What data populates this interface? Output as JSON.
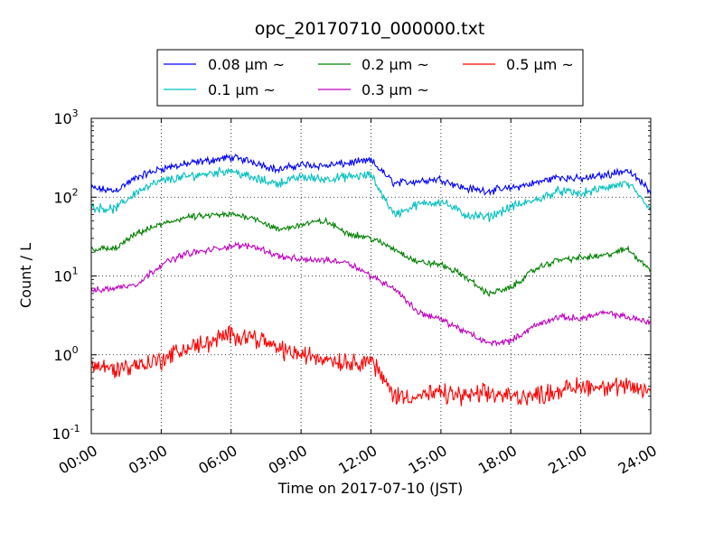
{
  "chart_data": {
    "type": "line",
    "title": "opc_20170710_000000.txt",
    "xlabel": "Time on 2017-07-10 (JST)",
    "ylabel": "Count / L",
    "yscale": "log",
    "ylim": [
      0.1,
      1000
    ],
    "y_ticks": [
      {
        "value": 0.1,
        "base": "10",
        "exp": "-1"
      },
      {
        "value": 1,
        "base": "10",
        "exp": "0"
      },
      {
        "value": 10,
        "base": "10",
        "exp": "1"
      },
      {
        "value": 100,
        "base": "10",
        "exp": "2"
      },
      {
        "value": 1000,
        "base": "10",
        "exp": "3"
      }
    ],
    "x_range_hours": [
      0,
      24
    ],
    "x_ticks": [
      {
        "hour": 0,
        "label": "00:00"
      },
      {
        "hour": 3,
        "label": "03:00"
      },
      {
        "hour": 6,
        "label": "06:00"
      },
      {
        "hour": 9,
        "label": "09:00"
      },
      {
        "hour": 12,
        "label": "12:00"
      },
      {
        "hour": 15,
        "label": "15:00"
      },
      {
        "hour": 18,
        "label": "18:00"
      },
      {
        "hour": 21,
        "label": "21:00"
      },
      {
        "hour": 24,
        "label": "24:00"
      }
    ],
    "grid": true,
    "legend_position": "top-center",
    "x": [
      "00:00",
      "01:00",
      "02:00",
      "03:00",
      "04:00",
      "05:00",
      "06:00",
      "07:00",
      "08:00",
      "09:00",
      "10:00",
      "11:00",
      "12:00",
      "13:00",
      "14:00",
      "15:00",
      "16:00",
      "17:00",
      "18:00",
      "19:00",
      "20:00",
      "21:00",
      "22:00",
      "23:00",
      "24:00"
    ],
    "series": [
      {
        "name": "0.08 μm ~",
        "color": "#0000ff",
        "noise": 0.06,
        "values": [
          130,
          120,
          180,
          230,
          260,
          290,
          320,
          280,
          220,
          260,
          250,
          270,
          290,
          150,
          160,
          170,
          130,
          120,
          130,
          150,
          180,
          170,
          190,
          220,
          120
        ]
      },
      {
        "name": "0.1 μm ~",
        "color": "#00bfbf",
        "noise": 0.07,
        "values": [
          75,
          70,
          120,
          160,
          180,
          200,
          220,
          170,
          150,
          180,
          170,
          180,
          190,
          60,
          80,
          90,
          60,
          55,
          75,
          90,
          120,
          110,
          130,
          150,
          70
        ]
      },
      {
        "name": "0.2 μm ~",
        "color": "#008000",
        "noise": 0.05,
        "values": [
          22,
          22,
          35,
          45,
          55,
          58,
          60,
          55,
          38,
          45,
          50,
          35,
          30,
          22,
          15,
          14,
          10,
          6,
          7,
          12,
          16,
          17,
          18,
          22,
          12
        ]
      },
      {
        "name": "0.3 μm ~",
        "color": "#bf00bf",
        "noise": 0.05,
        "values": [
          6.5,
          7,
          8,
          14,
          19,
          21,
          24,
          24,
          18,
          16,
          16,
          15,
          10,
          7,
          3.5,
          2.8,
          2.0,
          1.4,
          1.5,
          2.3,
          3.0,
          2.9,
          3.4,
          3.0,
          2.6
        ]
      },
      {
        "name": "0.5 μm ~",
        "color": "#ff0000",
        "noise": 0.15,
        "values": [
          0.75,
          0.65,
          0.75,
          0.85,
          1.2,
          1.4,
          1.8,
          1.7,
          1.2,
          1.0,
          0.9,
          0.8,
          0.85,
          0.3,
          0.3,
          0.32,
          0.3,
          0.32,
          0.3,
          0.3,
          0.35,
          0.4,
          0.4,
          0.38,
          0.35
        ]
      }
    ]
  }
}
